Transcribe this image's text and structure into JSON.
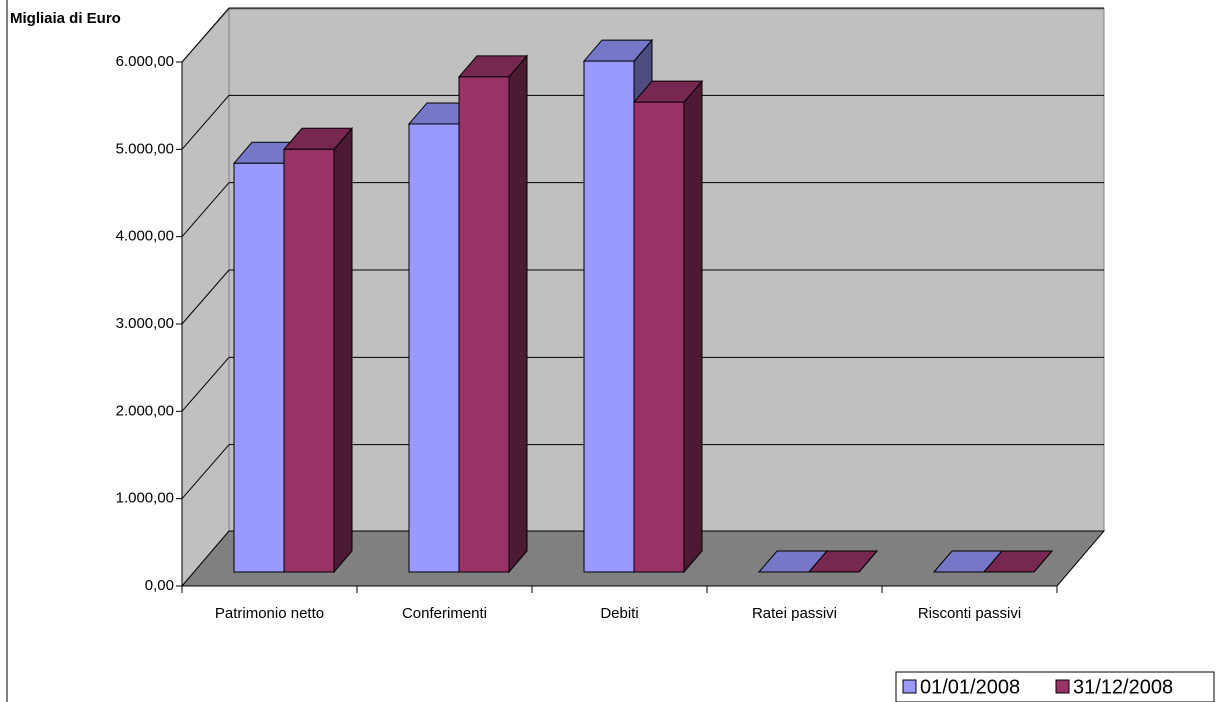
{
  "chart_data": {
    "type": "bar3d",
    "title": "Migliaia di Euro",
    "categories": [
      "Patrimonio netto",
      "Conferimenti",
      "Debiti",
      "Ratei passivi",
      "Risconti passivi"
    ],
    "series": [
      {
        "name": "01/01/2008",
        "color": "#9999ff",
        "values": [
          4680,
          5130,
          5850,
          0,
          0
        ]
      },
      {
        "name": "31/12/2008",
        "color": "#993366",
        "values": [
          4840,
          5670,
          5380,
          0,
          0
        ]
      }
    ],
    "ylim": [
      0,
      6000
    ],
    "yticks": [
      {
        "value": 0,
        "label": "0,00"
      },
      {
        "value": 1000,
        "label": "1.000,00"
      },
      {
        "value": 2000,
        "label": "2.000,00"
      },
      {
        "value": 3000,
        "label": "3.000,00"
      },
      {
        "value": 4000,
        "label": "4.000,00"
      },
      {
        "value": 5000,
        "label": "5.000,00"
      },
      {
        "value": 6000,
        "label": "6.000,00"
      }
    ],
    "grid": true
  }
}
